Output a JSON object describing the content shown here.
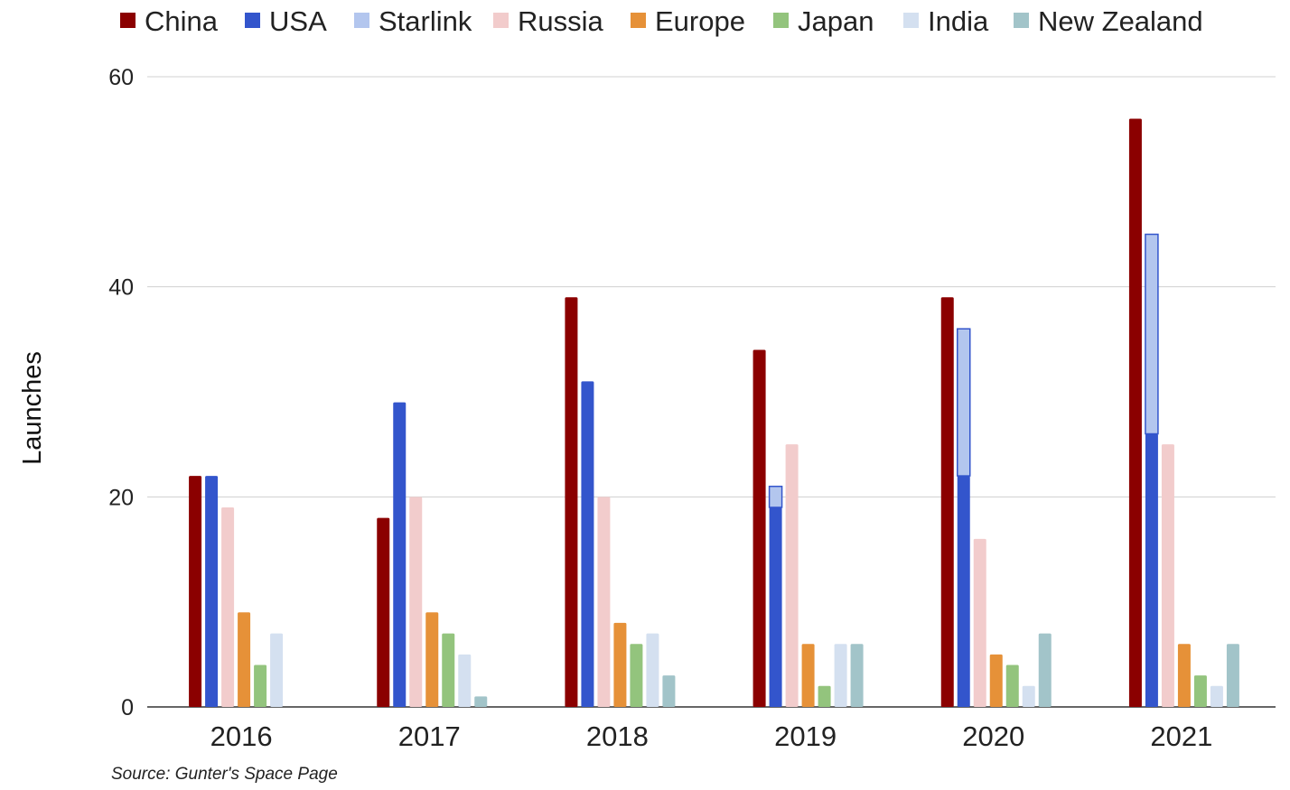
{
  "chart_data": {
    "type": "bar",
    "ylabel": "Launches",
    "source": "Source: Gunter's Space Page",
    "ylim": [
      0,
      60
    ],
    "yticks": [
      0,
      20,
      40,
      60
    ],
    "grid": true,
    "legend_position": "top",
    "categories": [
      "2016",
      "2017",
      "2018",
      "2019",
      "2020",
      "2021"
    ],
    "series": [
      {
        "name": "China",
        "color": "#8b0000",
        "values": [
          22,
          18,
          39,
          34,
          39,
          56
        ]
      },
      {
        "name": "USA",
        "color": "#3355cc",
        "values": [
          22,
          29,
          31,
          19,
          22,
          26
        ]
      },
      {
        "name": "Starlink",
        "color": "#b3c6ee",
        "stacked_on": "USA",
        "values": [
          0,
          0,
          0,
          2,
          14,
          19
        ]
      },
      {
        "name": "Russia",
        "color": "#f2cccc",
        "values": [
          19,
          20,
          20,
          25,
          16,
          25
        ]
      },
      {
        "name": "Europe",
        "color": "#e69138",
        "values": [
          9,
          9,
          8,
          6,
          5,
          6
        ]
      },
      {
        "name": "Japan",
        "color": "#93c47d",
        "values": [
          4,
          7,
          6,
          2,
          4,
          3
        ]
      },
      {
        "name": "India",
        "color": "#d4e0f0",
        "values": [
          7,
          5,
          7,
          6,
          2,
          2
        ]
      },
      {
        "name": "New Zealand",
        "color": "#a2c4c9",
        "values": [
          0,
          1,
          3,
          6,
          7,
          6
        ]
      }
    ]
  }
}
